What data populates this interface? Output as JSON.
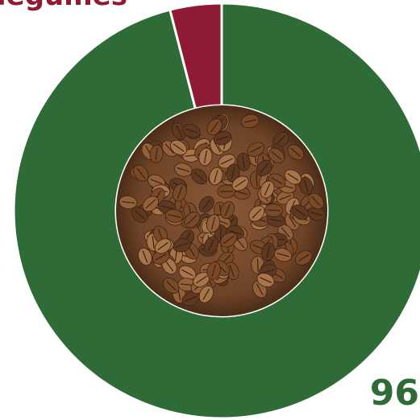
{
  "chart_data": {
    "type": "donut",
    "categories": [
      null,
      "légumes"
    ],
    "values": [
      96,
      4
    ],
    "colors": [
      "#2e6b36",
      "#8e1b33"
    ]
  }
}
